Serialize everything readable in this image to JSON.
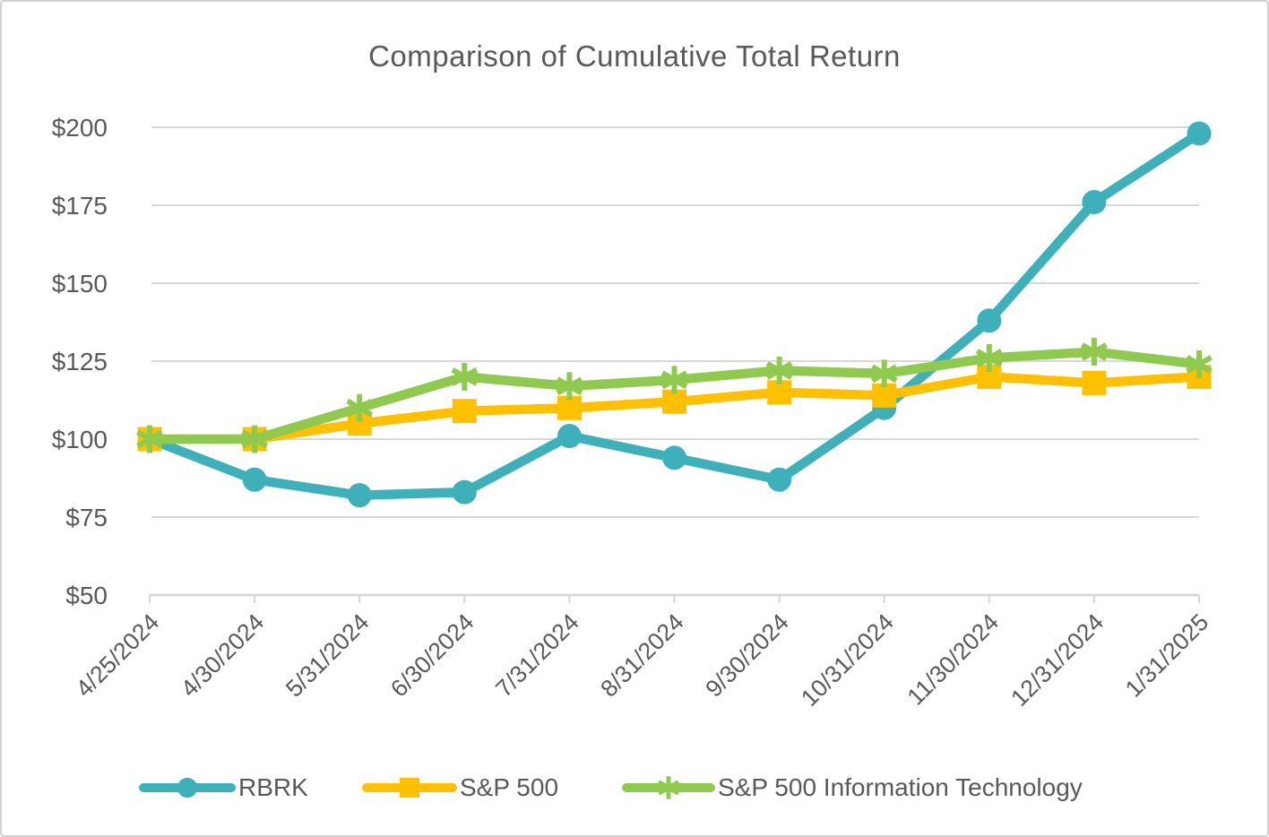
{
  "chart_data": {
    "type": "line",
    "title": "Comparison of Cumulative Total Return",
    "categories": [
      "4/25/2024",
      "4/30/2024",
      "5/31/2024",
      "6/30/2024",
      "7/31/2024",
      "8/31/2024",
      "9/30/2024",
      "10/31/2024",
      "11/30/2024",
      "12/31/2024",
      "1/31/2025"
    ],
    "series": [
      {
        "name": "RBRK",
        "color": "#3EB0BA",
        "marker": "circle",
        "values": [
          100,
          87,
          82,
          83,
          101,
          94,
          87,
          110,
          138,
          176,
          198
        ]
      },
      {
        "name": "S&P 500",
        "color": "#FFC000",
        "marker": "square",
        "values": [
          100,
          100,
          105,
          109,
          110,
          112,
          115,
          114,
          120,
          118,
          120
        ]
      },
      {
        "name": "S&P 500 Information Technology",
        "color": "#8FC94D",
        "marker": "asterisk",
        "values": [
          100,
          100,
          110,
          120,
          117,
          119,
          122,
          121,
          126,
          128,
          124
        ]
      }
    ],
    "y_axis": {
      "tick_labels": [
        "$50",
        "$75",
        "$100",
        "$125",
        "$150",
        "$175",
        "$200"
      ],
      "tick_values": [
        50,
        75,
        100,
        125,
        150,
        175,
        200
      ],
      "min": 50,
      "max": 200,
      "currency_prefix": "$"
    },
    "x_axis": {
      "label_rotation_deg": -45
    },
    "grid": "horizontal",
    "legend_position": "bottom"
  },
  "style": {
    "text_color": "#595959",
    "gridline_color": "#D9D9D9",
    "axis_color": "#D6D6D6",
    "background_color": "#FFFFFF",
    "border_color": "#CFD2D3"
  }
}
